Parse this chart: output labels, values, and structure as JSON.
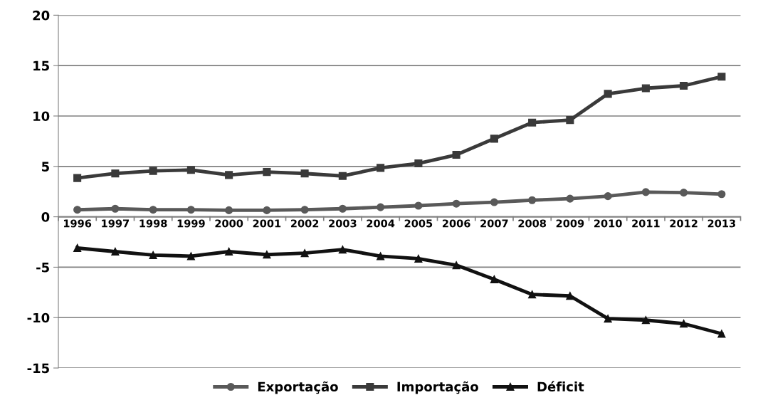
{
  "chart_data": {
    "type": "line",
    "categories": [
      "1996",
      "1997",
      "1998",
      "1999",
      "2000",
      "2001",
      "2002",
      "2003",
      "2004",
      "2005",
      "2006",
      "2007",
      "2008",
      "2009",
      "2010",
      "2011",
      "2012",
      "2013"
    ],
    "series": [
      {
        "name": "Exportação",
        "color": "#595959",
        "marker": "circle",
        "values": [
          0.7,
          0.8,
          0.7,
          0.7,
          0.65,
          0.65,
          0.7,
          0.8,
          0.95,
          1.1,
          1.3,
          1.45,
          1.65,
          1.8,
          2.05,
          2.45,
          2.4,
          2.25
        ]
      },
      {
        "name": "Importação",
        "color": "#3a3a3a",
        "marker": "square",
        "values": [
          3.85,
          4.3,
          4.55,
          4.65,
          4.15,
          4.45,
          4.3,
          4.05,
          4.85,
          5.3,
          6.15,
          7.75,
          9.35,
          9.6,
          12.2,
          12.75,
          13.0,
          13.9
        ]
      },
      {
        "name": "Déficit",
        "color": "#111111",
        "marker": "triangle",
        "values": [
          -3.1,
          -3.45,
          -3.8,
          -3.9,
          -3.45,
          -3.75,
          -3.6,
          -3.25,
          -3.9,
          -4.15,
          -4.8,
          -6.2,
          -7.7,
          -7.85,
          -10.1,
          -10.25,
          -10.6,
          -11.6
        ]
      }
    ],
    "ylim": [
      -15,
      20
    ],
    "yticks": [
      -15,
      -10,
      -5,
      0,
      5,
      10,
      15,
      20
    ],
    "grid": "y",
    "legend": "bottom",
    "line_style": "solid"
  }
}
